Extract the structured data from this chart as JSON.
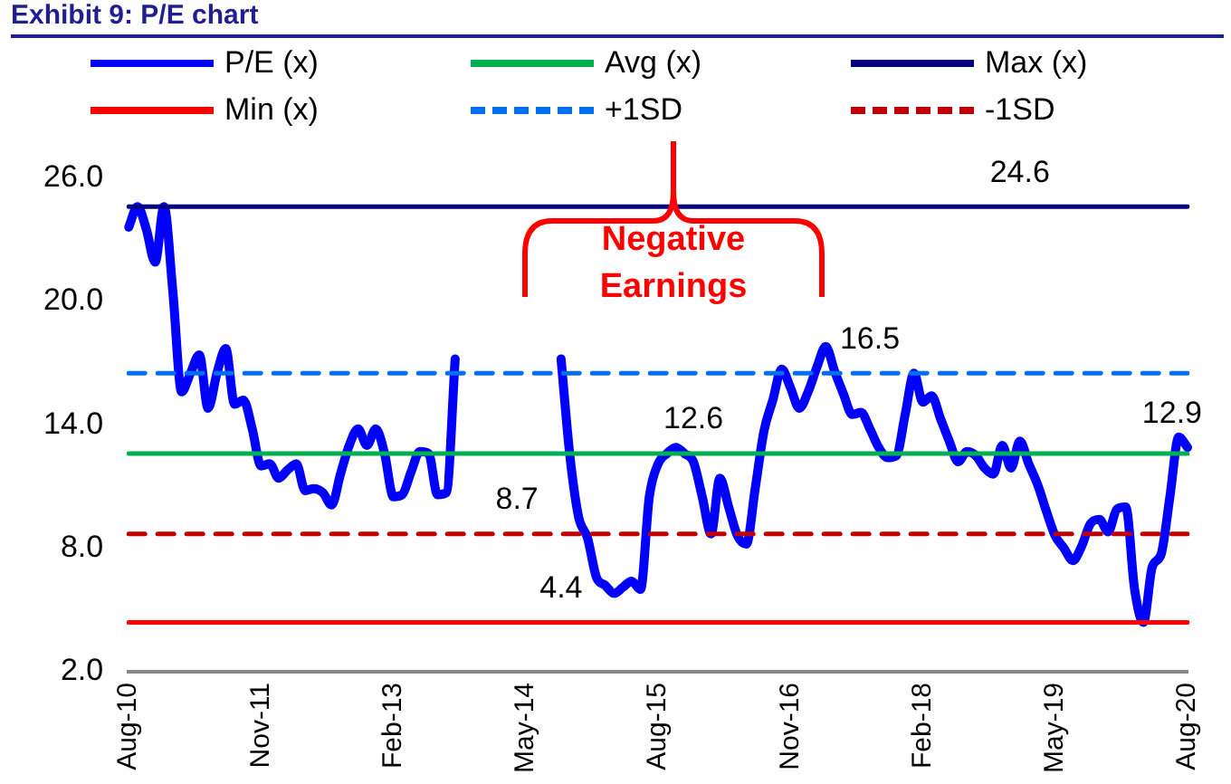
{
  "chart_data": {
    "type": "line",
    "title": "Exhibit 9: P/E chart",
    "categories": [
      "Aug-10",
      null,
      null,
      null,
      null,
      null,
      null,
      null,
      null,
      null,
      null,
      null,
      null,
      null,
      null,
      "Nov-11",
      null,
      null,
      null,
      null,
      null,
      null,
      null,
      null,
      null,
      null,
      null,
      null,
      null,
      null,
      "Feb-13",
      null,
      null,
      null,
      null,
      null,
      null,
      null,
      null,
      null,
      null,
      null,
      null,
      null,
      null,
      "May-14",
      null,
      null,
      null,
      null,
      null,
      null,
      null,
      null,
      null,
      null,
      null,
      null,
      null,
      null,
      "Aug-15",
      null,
      null,
      null,
      null,
      null,
      null,
      null,
      null,
      null,
      null,
      null,
      null,
      null,
      null,
      "Nov-16",
      null,
      null,
      null,
      null,
      null,
      null,
      null,
      null,
      null,
      null,
      null,
      null,
      null,
      null,
      "Feb-18",
      null,
      null,
      null,
      null,
      null,
      null,
      null,
      null,
      null,
      null,
      null,
      null,
      null,
      null,
      "May-19",
      null,
      null,
      null,
      null,
      null,
      null,
      null,
      null,
      null,
      null,
      null,
      null,
      null,
      null,
      "Aug-20"
    ],
    "series": [
      {
        "name": "P/E (x)",
        "color": "#0000ff",
        "values": [
          23.6,
          24.6,
          23.5,
          21.9,
          24.6,
          20.5,
          15.6,
          16.5,
          17.4,
          14.8,
          16.5,
          17.7,
          15.0,
          15.2,
          13.8,
          12.0,
          12.1,
          11.4,
          11.8,
          12.1,
          10.8,
          10.9,
          10.7,
          10.1,
          11.6,
          13.0,
          13.8,
          13.0,
          13.8,
          12.6,
          10.5,
          10.6,
          11.7,
          12.7,
          12.6,
          10.6,
          10.7,
          17.2,
          null,
          null,
          null,
          null,
          null,
          null,
          null,
          null,
          null,
          null,
          null,
          17.2,
          12.5,
          9.5,
          8.5,
          6.6,
          6.2,
          5.8,
          6.1,
          6.4,
          6.0,
          10.5,
          12.1,
          12.6,
          12.9,
          12.6,
          12.2,
          10.5,
          8.7,
          11.4,
          10.0,
          8.6,
          8.2,
          10.9,
          13.7,
          15.2,
          16.7,
          15.8,
          14.8,
          15.6,
          16.8,
          17.8,
          16.6,
          15.5,
          14.5,
          14.6,
          13.8,
          12.9,
          12.4,
          12.5,
          14.5,
          16.5,
          15.1,
          15.4,
          14.3,
          13.2,
          12.2,
          12.7,
          12.5,
          11.9,
          11.6,
          13.0,
          11.9,
          13.2,
          12.1,
          11.1,
          9.8,
          8.6,
          8.0,
          7.4,
          8.1,
          9.2,
          9.4,
          8.8,
          9.9,
          10.0,
          6.0,
          4.4,
          7.1,
          7.7,
          10.5,
          13.4,
          12.9
        ],
        "value_labels": [
          null,
          null,
          null,
          null,
          null,
          null,
          null,
          null,
          null,
          null,
          null,
          null,
          null,
          null,
          null,
          null,
          null,
          null,
          null,
          null,
          null,
          null,
          null,
          null,
          null,
          null,
          null,
          null,
          null,
          null,
          null,
          null,
          null,
          null,
          null,
          null,
          null,
          null,
          null,
          null,
          null,
          null,
          null,
          null,
          null,
          null,
          null,
          null,
          null,
          null,
          null,
          null,
          null,
          null,
          null,
          null,
          null,
          null,
          null,
          null,
          null,
          null,
          null,
          null,
          null,
          null,
          null,
          null,
          null,
          null,
          null,
          null,
          null,
          null,
          null,
          null,
          null,
          null,
          null,
          null,
          null,
          null,
          null,
          null,
          null,
          null,
          null,
          null,
          null,
          null,
          null,
          null,
          null,
          null,
          null,
          null,
          null,
          null,
          null,
          null,
          null,
          null,
          null,
          null,
          null,
          null,
          null,
          null,
          null,
          null,
          null,
          null,
          null,
          null,
          null,
          null,
          null,
          null,
          null,
          null,
          "12.9"
        ]
      },
      {
        "name": "Avg (x)",
        "color": "#00b050",
        "values": [
          12.6,
          12.6,
          12.6,
          12.6,
          12.6,
          12.6,
          12.6,
          12.6,
          12.6,
          12.6,
          12.6,
          12.6,
          12.6,
          12.6,
          12.6,
          12.6,
          12.6,
          12.6,
          12.6,
          12.6,
          12.6,
          12.6,
          12.6,
          12.6,
          12.6,
          12.6,
          12.6,
          12.6,
          12.6,
          12.6,
          12.6,
          12.6,
          12.6,
          12.6,
          12.6,
          12.6,
          12.6,
          12.6,
          12.6,
          12.6,
          12.6,
          12.6,
          12.6,
          12.6,
          12.6,
          12.6,
          12.6,
          12.6,
          12.6,
          12.6,
          12.6,
          12.6,
          12.6,
          12.6,
          12.6,
          12.6,
          12.6,
          12.6,
          12.6,
          12.6,
          12.6,
          12.6,
          12.6,
          12.6,
          12.6,
          12.6,
          12.6,
          12.6,
          12.6,
          12.6,
          12.6,
          12.6,
          12.6,
          12.6,
          12.6,
          12.6,
          12.6,
          12.6,
          12.6,
          12.6,
          12.6,
          12.6,
          12.6,
          12.6,
          12.6,
          12.6,
          12.6,
          12.6,
          12.6,
          12.6,
          12.6,
          12.6,
          12.6,
          12.6,
          12.6,
          12.6,
          12.6,
          12.6,
          12.6,
          12.6,
          12.6,
          12.6,
          12.6,
          12.6,
          12.6,
          12.6,
          12.6,
          12.6,
          12.6,
          12.6,
          12.6,
          12.6,
          12.6,
          12.6,
          12.6,
          12.6,
          12.6,
          12.6,
          12.6,
          12.6,
          12.6
        ],
        "value_labels": [
          null,
          null,
          null,
          null,
          null,
          null,
          null,
          null,
          null,
          null,
          null,
          null,
          null,
          null,
          null,
          null,
          null,
          null,
          null,
          null,
          null,
          null,
          null,
          null,
          null,
          null,
          null,
          null,
          null,
          null,
          null,
          null,
          null,
          null,
          null,
          null,
          null,
          null,
          null,
          null,
          null,
          null,
          null,
          null,
          null,
          null,
          null,
          null,
          null,
          null,
          null,
          null,
          null,
          null,
          null,
          null,
          null,
          null,
          null,
          null,
          null,
          null,
          null,
          null,
          "12.6",
          null,
          null,
          null,
          null,
          null,
          null,
          null,
          null,
          null,
          null,
          null,
          null,
          null,
          null,
          null,
          null,
          null,
          null,
          null,
          null,
          null,
          null,
          null,
          null,
          null,
          null,
          null,
          null,
          null,
          null,
          null,
          null,
          null,
          null,
          null,
          null,
          null,
          null,
          null,
          null,
          null,
          null,
          null,
          null,
          null,
          null,
          null,
          null,
          null,
          null,
          null,
          null,
          null,
          null,
          null,
          null
        ]
      },
      {
        "name": "Max (x)",
        "color": "#000080",
        "values": [
          24.6,
          24.6,
          24.6,
          24.6,
          24.6,
          24.6,
          24.6,
          24.6,
          24.6,
          24.6,
          24.6,
          24.6,
          24.6,
          24.6,
          24.6,
          24.6,
          24.6,
          24.6,
          24.6,
          24.6,
          24.6,
          24.6,
          24.6,
          24.6,
          24.6,
          24.6,
          24.6,
          24.6,
          24.6,
          24.6,
          24.6,
          24.6,
          24.6,
          24.6,
          24.6,
          24.6,
          24.6,
          24.6,
          24.6,
          24.6,
          24.6,
          24.6,
          24.6,
          24.6,
          24.6,
          24.6,
          24.6,
          24.6,
          24.6,
          24.6,
          24.6,
          24.6,
          24.6,
          24.6,
          24.6,
          24.6,
          24.6,
          24.6,
          24.6,
          24.6,
          24.6,
          24.6,
          24.6,
          24.6,
          24.6,
          24.6,
          24.6,
          24.6,
          24.6,
          24.6,
          24.6,
          24.6,
          24.6,
          24.6,
          24.6,
          24.6,
          24.6,
          24.6,
          24.6,
          24.6,
          24.6,
          24.6,
          24.6,
          24.6,
          24.6,
          24.6,
          24.6,
          24.6,
          24.6,
          24.6,
          24.6,
          24.6,
          24.6,
          24.6,
          24.6,
          24.6,
          24.6,
          24.6,
          24.6,
          24.6,
          24.6,
          24.6,
          24.6,
          24.6,
          24.6,
          24.6,
          24.6,
          24.6,
          24.6,
          24.6,
          24.6,
          24.6,
          24.6,
          24.6,
          24.6,
          24.6,
          24.6,
          24.6,
          24.6,
          24.6,
          24.6
        ],
        "value_labels": [
          null,
          null,
          null,
          null,
          null,
          null,
          null,
          null,
          null,
          null,
          null,
          null,
          null,
          null,
          null,
          null,
          null,
          null,
          null,
          null,
          null,
          null,
          null,
          null,
          null,
          null,
          null,
          null,
          null,
          null,
          null,
          null,
          null,
          null,
          null,
          null,
          null,
          null,
          null,
          null,
          null,
          null,
          null,
          null,
          null,
          null,
          null,
          null,
          null,
          null,
          null,
          null,
          null,
          null,
          null,
          null,
          null,
          null,
          null,
          null,
          null,
          null,
          null,
          null,
          null,
          null,
          null,
          null,
          null,
          null,
          null,
          null,
          null,
          null,
          null,
          null,
          null,
          null,
          null,
          null,
          null,
          null,
          null,
          null,
          null,
          null,
          null,
          null,
          null,
          null,
          null,
          null,
          null,
          null,
          null,
          null,
          null,
          null,
          null,
          null,
          null,
          "24.6",
          null,
          null,
          null,
          null,
          null,
          null,
          null,
          null,
          null,
          null,
          null,
          null,
          null,
          null,
          null,
          null,
          null,
          null,
          null
        ]
      },
      {
        "name": "Min (x)",
        "color": "#ff0000",
        "values": [
          4.4,
          4.4,
          4.4,
          4.4,
          4.4,
          4.4,
          4.4,
          4.4,
          4.4,
          4.4,
          4.4,
          4.4,
          4.4,
          4.4,
          4.4,
          4.4,
          4.4,
          4.4,
          4.4,
          4.4,
          4.4,
          4.4,
          4.4,
          4.4,
          4.4,
          4.4,
          4.4,
          4.4,
          4.4,
          4.4,
          4.4,
          4.4,
          4.4,
          4.4,
          4.4,
          4.4,
          4.4,
          4.4,
          4.4,
          4.4,
          4.4,
          4.4,
          4.4,
          4.4,
          4.4,
          4.4,
          4.4,
          4.4,
          4.4,
          4.4,
          4.4,
          4.4,
          4.4,
          4.4,
          4.4,
          4.4,
          4.4,
          4.4,
          4.4,
          4.4,
          4.4,
          4.4,
          4.4,
          4.4,
          4.4,
          4.4,
          4.4,
          4.4,
          4.4,
          4.4,
          4.4,
          4.4,
          4.4,
          4.4,
          4.4,
          4.4,
          4.4,
          4.4,
          4.4,
          4.4,
          4.4,
          4.4,
          4.4,
          4.4,
          4.4,
          4.4,
          4.4,
          4.4,
          4.4,
          4.4,
          4.4,
          4.4,
          4.4,
          4.4,
          4.4,
          4.4,
          4.4,
          4.4,
          4.4,
          4.4,
          4.4,
          4.4,
          4.4,
          4.4,
          4.4,
          4.4,
          4.4,
          4.4,
          4.4,
          4.4,
          4.4,
          4.4,
          4.4,
          4.4,
          4.4,
          4.4,
          4.4,
          4.4,
          4.4,
          4.4,
          4.4
        ],
        "value_labels": [
          null,
          null,
          null,
          null,
          null,
          null,
          null,
          null,
          null,
          null,
          null,
          null,
          null,
          null,
          null,
          null,
          null,
          null,
          null,
          null,
          null,
          null,
          null,
          null,
          null,
          null,
          null,
          null,
          null,
          null,
          null,
          null,
          null,
          null,
          null,
          null,
          null,
          null,
          null,
          null,
          null,
          null,
          null,
          null,
          null,
          null,
          null,
          null,
          null,
          "4.4",
          null,
          null,
          null,
          null,
          null,
          null,
          null,
          null,
          null,
          null,
          null,
          null,
          null,
          null,
          null,
          null,
          null,
          null,
          null,
          null,
          null,
          null,
          null,
          null,
          null,
          null,
          null,
          null,
          null,
          null,
          null,
          null,
          null,
          null,
          null,
          null,
          null,
          null,
          null,
          null,
          null,
          null,
          null,
          null,
          null,
          null,
          null,
          null,
          null,
          null,
          null,
          null,
          null,
          null,
          null,
          null,
          null,
          null,
          null,
          null,
          null,
          null,
          null,
          null,
          null,
          null,
          null,
          null,
          null,
          null,
          null
        ]
      },
      {
        "name": "+1SD",
        "color": "#0070f0",
        "line_style": "dashed",
        "values": [
          16.5,
          16.5,
          16.5,
          16.5,
          16.5,
          16.5,
          16.5,
          16.5,
          16.5,
          16.5,
          16.5,
          16.5,
          16.5,
          16.5,
          16.5,
          16.5,
          16.5,
          16.5,
          16.5,
          16.5,
          16.5,
          16.5,
          16.5,
          16.5,
          16.5,
          16.5,
          16.5,
          16.5,
          16.5,
          16.5,
          16.5,
          16.5,
          16.5,
          16.5,
          16.5,
          16.5,
          16.5,
          16.5,
          16.5,
          16.5,
          16.5,
          16.5,
          16.5,
          16.5,
          16.5,
          16.5,
          16.5,
          16.5,
          16.5,
          16.5,
          16.5,
          16.5,
          16.5,
          16.5,
          16.5,
          16.5,
          16.5,
          16.5,
          16.5,
          16.5,
          16.5,
          16.5,
          16.5,
          16.5,
          16.5,
          16.5,
          16.5,
          16.5,
          16.5,
          16.5,
          16.5,
          16.5,
          16.5,
          16.5,
          16.5,
          16.5,
          16.5,
          16.5,
          16.5,
          16.5,
          16.5,
          16.5,
          16.5,
          16.5,
          16.5,
          16.5,
          16.5,
          16.5,
          16.5,
          16.5,
          16.5,
          16.5,
          16.5,
          16.5,
          16.5,
          16.5,
          16.5,
          16.5,
          16.5,
          16.5,
          16.5,
          16.5,
          16.5,
          16.5,
          16.5,
          16.5,
          16.5,
          16.5,
          16.5,
          16.5,
          16.5,
          16.5,
          16.5,
          16.5,
          16.5,
          16.5,
          16.5,
          16.5,
          16.5,
          16.5,
          16.5
        ],
        "value_labels": [
          null,
          null,
          null,
          null,
          null,
          null,
          null,
          null,
          null,
          null,
          null,
          null,
          null,
          null,
          null,
          null,
          null,
          null,
          null,
          null,
          null,
          null,
          null,
          null,
          null,
          null,
          null,
          null,
          null,
          null,
          null,
          null,
          null,
          null,
          null,
          null,
          null,
          null,
          null,
          null,
          null,
          null,
          null,
          null,
          null,
          null,
          null,
          null,
          null,
          null,
          null,
          null,
          null,
          null,
          null,
          null,
          null,
          null,
          null,
          null,
          null,
          null,
          null,
          null,
          null,
          null,
          null,
          null,
          null,
          null,
          null,
          null,
          null,
          null,
          null,
          null,
          null,
          null,
          null,
          null,
          null,
          null,
          null,
          null,
          "16.5",
          null,
          null,
          null,
          null,
          null,
          null,
          null,
          null,
          null,
          null,
          null,
          null,
          null,
          null,
          null,
          null,
          null,
          null,
          null,
          null,
          null,
          null,
          null,
          null,
          null,
          null,
          null,
          null,
          null,
          null,
          null,
          null,
          null,
          null,
          null,
          null
        ]
      },
      {
        "name": "-1SD",
        "color": "#c00000",
        "line_style": "dashed",
        "values": [
          8.7,
          8.7,
          8.7,
          8.7,
          8.7,
          8.7,
          8.7,
          8.7,
          8.7,
          8.7,
          8.7,
          8.7,
          8.7,
          8.7,
          8.7,
          8.7,
          8.7,
          8.7,
          8.7,
          8.7,
          8.7,
          8.7,
          8.7,
          8.7,
          8.7,
          8.7,
          8.7,
          8.7,
          8.7,
          8.7,
          8.7,
          8.7,
          8.7,
          8.7,
          8.7,
          8.7,
          8.7,
          8.7,
          8.7,
          8.7,
          8.7,
          8.7,
          8.7,
          8.7,
          8.7,
          8.7,
          8.7,
          8.7,
          8.7,
          8.7,
          8.7,
          8.7,
          8.7,
          8.7,
          8.7,
          8.7,
          8.7,
          8.7,
          8.7,
          8.7,
          8.7,
          8.7,
          8.7,
          8.7,
          8.7,
          8.7,
          8.7,
          8.7,
          8.7,
          8.7,
          8.7,
          8.7,
          8.7,
          8.7,
          8.7,
          8.7,
          8.7,
          8.7,
          8.7,
          8.7,
          8.7,
          8.7,
          8.7,
          8.7,
          8.7,
          8.7,
          8.7,
          8.7,
          8.7,
          8.7,
          8.7,
          8.7,
          8.7,
          8.7,
          8.7,
          8.7,
          8.7,
          8.7,
          8.7,
          8.7,
          8.7,
          8.7,
          8.7,
          8.7,
          8.7,
          8.7,
          8.7,
          8.7,
          8.7,
          8.7,
          8.7,
          8.7,
          8.7,
          8.7,
          8.7,
          8.7,
          8.7,
          8.7,
          8.7,
          8.7,
          8.7
        ],
        "value_labels": [
          null,
          null,
          null,
          null,
          null,
          null,
          null,
          null,
          null,
          null,
          null,
          null,
          null,
          null,
          null,
          null,
          null,
          null,
          null,
          null,
          null,
          null,
          null,
          null,
          null,
          null,
          null,
          null,
          null,
          null,
          null,
          null,
          null,
          null,
          null,
          null,
          null,
          null,
          null,
          null,
          null,
          null,
          null,
          null,
          "8.7",
          null,
          null,
          null,
          null,
          null,
          null,
          null,
          null,
          null,
          null,
          null,
          null,
          null,
          null,
          null,
          null,
          null,
          null,
          null,
          null,
          null,
          null,
          null,
          null,
          null,
          null,
          null,
          null,
          null,
          null,
          null,
          null,
          null,
          null,
          null,
          null,
          null,
          null,
          null,
          null,
          null,
          null,
          null,
          null,
          null,
          null,
          null,
          null,
          null,
          null,
          null,
          null,
          null,
          null,
          null,
          null,
          null,
          null,
          null,
          null,
          null,
          null,
          null,
          null,
          null,
          null,
          null,
          null,
          null,
          null,
          null,
          null,
          null,
          null,
          null,
          null
        ]
      }
    ],
    "ylim": [
      2,
      26
    ],
    "yticks": [
      {
        "value": 2,
        "label": "2.0"
      },
      {
        "value": 8,
        "label": "8.0"
      },
      {
        "value": 14,
        "label": "14.0"
      },
      {
        "value": 20,
        "label": "20.0"
      },
      {
        "value": 26,
        "label": "26.0"
      }
    ],
    "grid": false,
    "legend": "top",
    "marker": "none",
    "line_style": "solid",
    "annotations": [
      "Negative Earnings"
    ]
  }
}
